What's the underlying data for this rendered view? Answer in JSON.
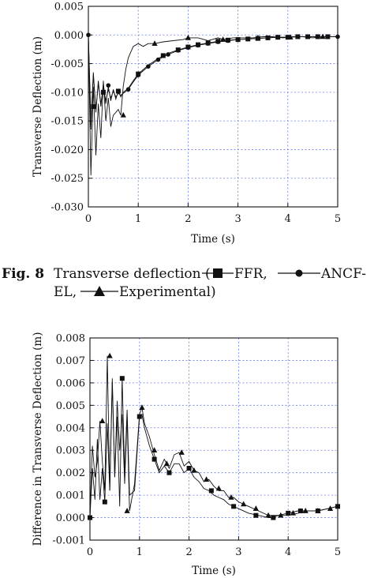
{
  "caption": {
    "fig_label": "Fig. 8",
    "line1_prefix": "Transverse deflection (",
    "ffr_label": " FFR,",
    "ancf_label": " ANCF-",
    "line2_prefix": "EL,",
    "exp_label": " Experimental)"
  },
  "chart_data": [
    {
      "type": "line",
      "title": "",
      "xlabel": "Time (s)",
      "ylabel": "Transverse Deflection (m)",
      "xlim": [
        0,
        5
      ],
      "ylim": [
        -0.03,
        0.005
      ],
      "xticks": [
        "0",
        "1",
        "2",
        "3",
        "4",
        "5"
      ],
      "yticks": [
        "0.005",
        "0.000",
        "-0.005",
        "-0.010",
        "-0.015",
        "-0.020",
        "-0.025",
        "-0.030"
      ],
      "grid": true,
      "series": [
        {
          "name": "Experimental",
          "marker": "triangle",
          "x": [
            0,
            0.05,
            0.1,
            0.15,
            0.2,
            0.25,
            0.3,
            0.35,
            0.4,
            0.45,
            0.5,
            0.55,
            0.6,
            0.65,
            0.7,
            0.75,
            0.8,
            0.85,
            0.9,
            1.0,
            1.1,
            1.2,
            1.33,
            1.5,
            1.7,
            1.9,
            2.0,
            2.2,
            2.4,
            2.6,
            2.7,
            2.9,
            3.1,
            3.3,
            3.5,
            3.7,
            3.9,
            4.1,
            4.3,
            4.5,
            4.7,
            4.9,
            5.0
          ],
          "y": [
            0,
            -0.0245,
            -0.009,
            -0.021,
            -0.012,
            -0.018,
            -0.008,
            -0.015,
            -0.011,
            -0.016,
            -0.014,
            -0.0135,
            -0.013,
            -0.014,
            -0.009,
            -0.006,
            -0.004,
            -0.003,
            -0.002,
            -0.0015,
            -0.002,
            -0.0015,
            -0.0015,
            -0.0012,
            -0.001,
            -0.0008,
            -0.0005,
            -0.0005,
            -0.001,
            -0.0005,
            -0.0008,
            -0.0005,
            -0.0005,
            -0.0005,
            -0.0003,
            -0.0003,
            -0.0005,
            -0.0003,
            -0.0003,
            -0.0005,
            -0.0003,
            -0.0003,
            -0.0003
          ],
          "marker_x": [
            0.7,
            1.33,
            2.0,
            2.7,
            3.4,
            4.05,
            4.7
          ],
          "marker_y": [
            -0.014,
            -0.0015,
            -0.0005,
            -0.0008,
            -0.0005,
            -0.0004,
            -0.0003
          ]
        },
        {
          "name": "ANCF-EL",
          "marker": "circle",
          "x": [
            0,
            0.05,
            0.1,
            0.15,
            0.2,
            0.25,
            0.3,
            0.35,
            0.4,
            0.45,
            0.5,
            0.55,
            0.6,
            0.65,
            0.7,
            0.8,
            0.9,
            1.0,
            1.2,
            1.4,
            1.6,
            1.8,
            2.0,
            2.2,
            2.4,
            2.6,
            2.8,
            3.0,
            3.2,
            3.4,
            3.6,
            3.8,
            4.0,
            4.2,
            4.4,
            4.6,
            4.8,
            5.0
          ],
          "y": [
            0,
            -0.015,
            -0.007,
            -0.013,
            -0.0085,
            -0.012,
            -0.009,
            -0.0115,
            -0.0095,
            -0.011,
            -0.0098,
            -0.0108,
            -0.0102,
            -0.0105,
            -0.0102,
            -0.0095,
            -0.0082,
            -0.007,
            -0.0055,
            -0.0043,
            -0.0034,
            -0.0027,
            -0.0022,
            -0.0018,
            -0.0015,
            -0.0012,
            -0.001,
            -0.0008,
            -0.0007,
            -0.0006,
            -0.0005,
            -0.0004,
            -0.0004,
            -0.0003,
            -0.0003,
            -0.0003,
            -0.0003,
            -0.0003
          ],
          "marker_x": [
            0,
            0.4,
            0.8,
            1.0,
            1.2,
            1.4,
            1.6,
            1.8,
            2.0,
            2.2,
            2.4,
            2.6,
            2.8,
            3.0,
            3.2,
            3.4,
            3.6,
            3.8,
            4.0,
            4.2,
            4.4,
            4.6,
            4.8,
            5.0
          ],
          "marker_y": [
            0,
            -0.0088,
            -0.0095,
            -0.007,
            -0.0055,
            -0.0043,
            -0.0034,
            -0.0027,
            -0.0022,
            -0.0018,
            -0.0015,
            -0.0012,
            -0.001,
            -0.0008,
            -0.0007,
            -0.0006,
            -0.0005,
            -0.0004,
            -0.0004,
            -0.0003,
            -0.0003,
            -0.0003,
            -0.0003,
            -0.0003
          ]
        },
        {
          "name": "FFR",
          "marker": "square",
          "x": [
            0,
            0.05,
            0.1,
            0.15,
            0.2,
            0.25,
            0.3,
            0.35,
            0.4,
            0.45,
            0.5,
            0.55,
            0.6,
            0.65,
            0.7,
            0.8,
            0.9,
            1.0,
            1.2,
            1.4,
            1.6,
            1.8,
            2.0,
            2.2,
            2.4,
            2.6,
            2.8,
            3.0,
            3.2,
            3.4,
            3.6,
            3.8,
            4.0,
            4.2,
            4.4,
            4.6,
            4.8,
            5.0
          ],
          "y": [
            0,
            -0.0165,
            -0.0065,
            -0.0135,
            -0.008,
            -0.0125,
            -0.0085,
            -0.012,
            -0.009,
            -0.0115,
            -0.0095,
            -0.0112,
            -0.0098,
            -0.0108,
            -0.01,
            -0.0093,
            -0.008,
            -0.0068,
            -0.0053,
            -0.0041,
            -0.0032,
            -0.0026,
            -0.0021,
            -0.0017,
            -0.0014,
            -0.0011,
            -0.0009,
            -0.0008,
            -0.0007,
            -0.0006,
            -0.0005,
            -0.0004,
            -0.0004,
            -0.0003,
            -0.0003,
            -0.0003,
            -0.0003,
            -0.0003
          ],
          "marker_x": [
            0.1,
            0.3,
            0.6,
            1.0,
            1.5,
            1.8,
            2.0,
            2.2,
            2.4,
            2.6,
            2.8,
            3.0,
            3.2,
            3.4,
            3.6,
            3.8,
            4.0,
            4.2,
            4.4,
            4.6,
            4.8
          ],
          "marker_y": [
            -0.0125,
            -0.01,
            -0.0098,
            -0.0068,
            -0.0036,
            -0.0026,
            -0.0021,
            -0.0017,
            -0.0014,
            -0.0011,
            -0.0009,
            -0.0008,
            -0.0007,
            -0.0006,
            -0.0005,
            -0.0004,
            -0.0004,
            -0.0003,
            -0.0003,
            -0.0003,
            -0.0003
          ]
        }
      ]
    },
    {
      "type": "line",
      "title": "",
      "xlabel": "Time (s)",
      "ylabel": "Difference in Transverse Deflection (m)",
      "xlim": [
        0,
        5
      ],
      "ylim": [
        -0.001,
        0.008
      ],
      "xticks": [
        "0",
        "1",
        "2",
        "3",
        "4",
        "5"
      ],
      "yticks": [
        "0.008",
        "0.007",
        "0.006",
        "0.005",
        "0.004",
        "0.003",
        "0.002",
        "0.001",
        "0.000",
        "-0.001"
      ],
      "grid": true,
      "series": [
        {
          "name": "ANCF-EL",
          "marker": "triangle",
          "x": [
            0,
            0.05,
            0.1,
            0.15,
            0.2,
            0.25,
            0.3,
            0.35,
            0.4,
            0.45,
            0.5,
            0.55,
            0.6,
            0.65,
            0.7,
            0.75,
            0.8,
            0.9,
            1.0,
            1.05,
            1.1,
            1.2,
            1.3,
            1.4,
            1.5,
            1.6,
            1.7,
            1.8,
            1.9,
            2.0,
            2.1,
            2.2,
            2.3,
            2.4,
            2.5,
            2.6,
            2.7,
            2.8,
            2.9,
            3.0,
            3.2,
            3.4,
            3.6,
            3.8,
            4.0,
            4.2,
            4.4,
            4.6,
            4.8,
            5.0
          ],
          "y": [
            0.0,
            0.0032,
            0.0018,
            0.0025,
            0.0043,
            0.0025,
            0.0012,
            0.0072,
            0.0012,
            0.006,
            0.0018,
            0.0052,
            0.003,
            0.0046,
            0.0015,
            0.0045,
            0.0003,
            0.0015,
            0.0046,
            0.0049,
            0.0042,
            0.0036,
            0.0028,
            0.0021,
            0.0026,
            0.0022,
            0.0028,
            0.0029,
            0.0023,
            0.0025,
            0.0021,
            0.002,
            0.0016,
            0.0017,
            0.0014,
            0.0012,
            0.0012,
            0.0009,
            0.0009,
            0.0007,
            0.0005,
            0.0003,
            0.0001,
            0.0001,
            0.0001,
            0.0002,
            0.0003,
            0.0003,
            0.0004,
            0.0005
          ],
          "marker_x": [
            0.25,
            0.4,
            0.75,
            1.05,
            1.3,
            1.55,
            1.85,
            2.1,
            2.35,
            2.6,
            2.85,
            3.1,
            3.35,
            3.6,
            3.85,
            4.1,
            4.35,
            4.6,
            4.85
          ],
          "marker_y": [
            0.0043,
            0.0072,
            0.0003,
            0.0049,
            0.003,
            0.0024,
            0.0029,
            0.0021,
            0.0017,
            0.0013,
            0.0009,
            0.0006,
            0.0004,
            0.0001,
            0.0001,
            0.0002,
            0.0003,
            0.0003,
            0.0004
          ]
        },
        {
          "name": "FFR",
          "marker": "square",
          "x": [
            0,
            0.05,
            0.1,
            0.15,
            0.2,
            0.25,
            0.3,
            0.35,
            0.4,
            0.45,
            0.5,
            0.55,
            0.6,
            0.65,
            0.7,
            0.75,
            0.8,
            0.9,
            1.0,
            1.05,
            1.1,
            1.2,
            1.3,
            1.4,
            1.5,
            1.6,
            1.7,
            1.8,
            1.9,
            2.0,
            2.1,
            2.2,
            2.3,
            2.4,
            2.5,
            2.6,
            2.7,
            2.8,
            2.9,
            3.0,
            3.2,
            3.4,
            3.6,
            3.7,
            3.8,
            4.0,
            4.2,
            4.4,
            4.6,
            4.8,
            5.0
          ],
          "y": [
            0.0,
            0.0022,
            0.0008,
            0.0035,
            0.0008,
            0.0022,
            0.0007,
            0.0042,
            0.0012,
            0.0062,
            0.0018,
            0.0045,
            0.0005,
            0.0062,
            0.002,
            0.0048,
            0.001,
            0.0012,
            0.0045,
            0.0046,
            0.004,
            0.0032,
            0.0026,
            0.002,
            0.0023,
            0.002,
            0.0024,
            0.0024,
            0.002,
            0.0022,
            0.0018,
            0.0016,
            0.0013,
            0.0012,
            0.001,
            0.0009,
            0.0008,
            0.0006,
            0.0005,
            0.0004,
            0.0002,
            0.0001,
            0.0,
            0.0,
            0.0001,
            0.0002,
            0.0003,
            0.0003,
            0.0003,
            0.0004,
            0.0005
          ],
          "marker_x": [
            0.0,
            0.3,
            0.65,
            1.0,
            1.3,
            1.6,
            2.0,
            2.45,
            2.9,
            3.35,
            3.7,
            4.0,
            4.25,
            4.6,
            5.0
          ],
          "marker_y": [
            0.0,
            0.0007,
            0.0062,
            0.0045,
            0.0026,
            0.002,
            0.0022,
            0.0012,
            0.0005,
            0.0001,
            0.0,
            0.0002,
            0.0003,
            0.0003,
            0.0005
          ]
        }
      ]
    }
  ]
}
